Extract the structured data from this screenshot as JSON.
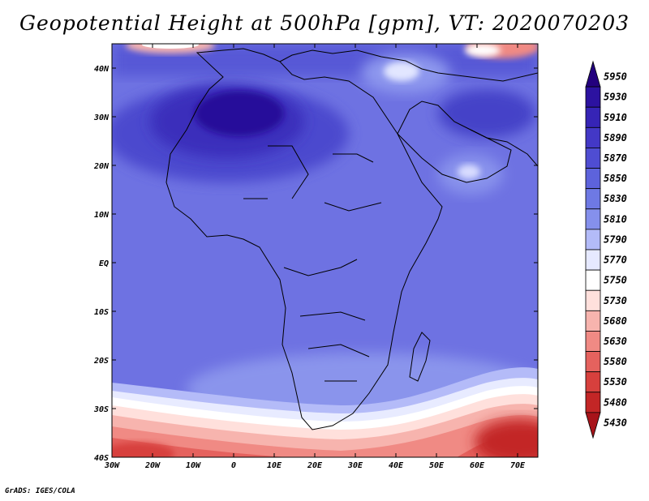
{
  "title": "Geopotential Height at 500hPa [gpm], VT: 2020070203",
  "credit": "GrADS: IGES/COLA",
  "map": {
    "lon_labels": [
      "30W",
      "20W",
      "10W",
      "0",
      "10E",
      "20E",
      "30E",
      "40E",
      "50E",
      "60E",
      "70E"
    ],
    "lat_labels": [
      "40N",
      "30N",
      "20N",
      "10N",
      "EQ",
      "10S",
      "20S",
      "30S",
      "40S"
    ]
  },
  "colorbar": {
    "labels": [
      "5950",
      "5930",
      "5910",
      "5890",
      "5870",
      "5850",
      "5830",
      "5810",
      "5790",
      "5770",
      "5750",
      "5730",
      "5680",
      "5630",
      "5580",
      "5530",
      "5480",
      "5430"
    ],
    "colors": [
      "#23007e",
      "#2c12a0",
      "#3624b6",
      "#4338c6",
      "#4f4dd2",
      "#5d63dc",
      "#6e79e4",
      "#8590ec",
      "#b3bbf8",
      "#e6e9ff",
      "#ffffff",
      "#ffe0dc",
      "#f7b4ae",
      "#f08a84",
      "#e5625e",
      "#d7403d",
      "#c32626",
      "#a8141a"
    ]
  }
}
